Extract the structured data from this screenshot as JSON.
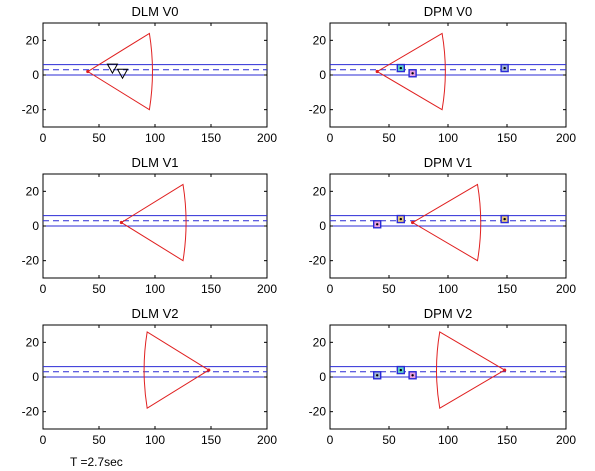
{
  "caption": "T =2.7sec",
  "chart_data": [
    {
      "type": "scatter",
      "title": "DLM V0",
      "xlim": [
        0,
        200
      ],
      "ylim": [
        -30,
        30
      ],
      "xticks": [
        0,
        50,
        100,
        150,
        200
      ],
      "yticks": [
        20,
        0,
        -20
      ],
      "lane_lines": {
        "solid": [
          0,
          6
        ],
        "dashed": 3
      },
      "sector": {
        "apex": [
          40,
          2
        ],
        "upper": [
          95,
          24
        ],
        "lower": [
          95,
          -20
        ]
      },
      "markers": [
        {
          "shape": "triangle",
          "x": 62,
          "y": 4
        },
        {
          "shape": "triangle",
          "x": 71,
          "y": 1
        }
      ]
    },
    {
      "type": "scatter",
      "title": "DPM V0",
      "xlim": [
        0,
        200
      ],
      "ylim": [
        -30,
        30
      ],
      "xticks": [
        0,
        50,
        100,
        150,
        200
      ],
      "yticks": [
        20,
        0,
        -20
      ],
      "lane_lines": {
        "solid": [
          0,
          6
        ],
        "dashed": 3
      },
      "sector": {
        "apex": [
          40,
          2
        ],
        "upper": [
          95,
          24
        ],
        "lower": [
          95,
          -20
        ]
      },
      "markers": [
        {
          "shape": "square",
          "x": 60,
          "y": 4,
          "fill": "#5fd3c8"
        },
        {
          "shape": "square",
          "x": 70,
          "y": 1,
          "fill": "#e8a0e0"
        },
        {
          "shape": "square",
          "x": 148,
          "y": 4,
          "fill": "#9fb4d8"
        }
      ]
    },
    {
      "type": "scatter",
      "title": "DLM V1",
      "xlim": [
        0,
        200
      ],
      "ylim": [
        -30,
        30
      ],
      "xticks": [
        0,
        50,
        100,
        150,
        200
      ],
      "yticks": [
        20,
        0,
        -20
      ],
      "lane_lines": {
        "solid": [
          0,
          6
        ],
        "dashed": 3
      },
      "sector": {
        "apex": [
          70,
          2
        ],
        "upper": [
          125,
          24
        ],
        "lower": [
          125,
          -20
        ]
      },
      "markers": []
    },
    {
      "type": "scatter",
      "title": "DPM V1",
      "xlim": [
        0,
        200
      ],
      "ylim": [
        -30,
        30
      ],
      "xticks": [
        0,
        50,
        100,
        150,
        200
      ],
      "yticks": [
        20,
        0,
        -20
      ],
      "lane_lines": {
        "solid": [
          0,
          6
        ],
        "dashed": 3
      },
      "sector": {
        "apex": [
          70,
          2
        ],
        "upper": [
          125,
          24
        ],
        "lower": [
          125,
          -20
        ]
      },
      "markers": [
        {
          "shape": "square",
          "x": 40,
          "y": 1,
          "fill": "#e8a0e0"
        },
        {
          "shape": "square",
          "x": 60,
          "y": 4,
          "fill": "#e8c87a"
        },
        {
          "shape": "square",
          "x": 148,
          "y": 4,
          "fill": "#e8c87a"
        }
      ]
    },
    {
      "type": "scatter",
      "title": "DLM V2",
      "xlim": [
        0,
        200
      ],
      "ylim": [
        -30,
        30
      ],
      "xticks": [
        0,
        50,
        100,
        150,
        200
      ],
      "yticks": [
        20,
        0,
        -20
      ],
      "lane_lines": {
        "solid": [
          0,
          6
        ],
        "dashed": 3
      },
      "sector": {
        "apex": [
          148,
          4
        ],
        "upper": [
          93,
          26
        ],
        "lower": [
          93,
          -18
        ]
      },
      "markers": []
    },
    {
      "type": "scatter",
      "title": "DPM V2",
      "xlim": [
        0,
        200
      ],
      "ylim": [
        -30,
        30
      ],
      "xticks": [
        0,
        50,
        100,
        150,
        200
      ],
      "yticks": [
        20,
        0,
        -20
      ],
      "lane_lines": {
        "solid": [
          0,
          6
        ],
        "dashed": 3
      },
      "sector": {
        "apex": [
          148,
          4
        ],
        "upper": [
          93,
          26
        ],
        "lower": [
          93,
          -18
        ]
      },
      "markers": [
        {
          "shape": "square",
          "x": 40,
          "y": 1,
          "fill": "#9fb4d8"
        },
        {
          "shape": "square",
          "x": 60,
          "y": 4,
          "fill": "#5fd3c8"
        },
        {
          "shape": "square",
          "x": 70,
          "y": 1,
          "fill": "#e8a0e0"
        }
      ]
    }
  ]
}
